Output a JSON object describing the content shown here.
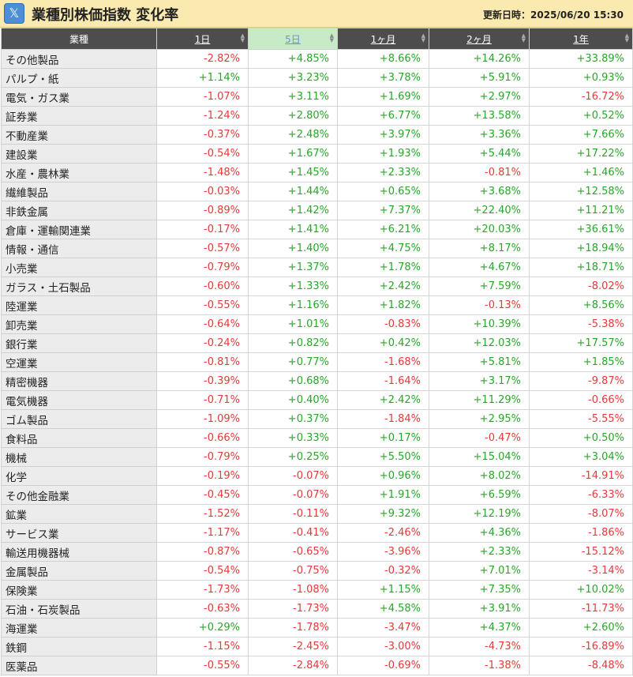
{
  "header": {
    "title": "業種別株価指数 変化率",
    "update_label": "更新日時：2025/06/20 15:30",
    "x_icon": "x-logo-icon"
  },
  "columns": [
    "業種",
    "1日",
    "5日",
    "1ヶ月",
    "2ヶ月",
    "1年"
  ],
  "current_sort_column": "5日",
  "colors": {
    "positive": "#2aa52a",
    "negative": "#e23b3b",
    "header_bg": "#4d4d4d",
    "active_header_bg": "#c8ebc7"
  },
  "rows": [
    [
      "その他製品",
      "-2.82%",
      "+4.85%",
      "+8.66%",
      "+14.26%",
      "+33.89%"
    ],
    [
      "パルプ・紙",
      "+1.14%",
      "+3.23%",
      "+3.78%",
      "+5.91%",
      "+0.93%"
    ],
    [
      "電気・ガス業",
      "-1.07%",
      "+3.11%",
      "+1.69%",
      "+2.97%",
      "-16.72%"
    ],
    [
      "証券業",
      "-1.24%",
      "+2.80%",
      "+6.77%",
      "+13.58%",
      "+0.52%"
    ],
    [
      "不動産業",
      "-0.37%",
      "+2.48%",
      "+3.97%",
      "+3.36%",
      "+7.66%"
    ],
    [
      "建設業",
      "-0.54%",
      "+1.67%",
      "+1.93%",
      "+5.44%",
      "+17.22%"
    ],
    [
      "水産・農林業",
      "-1.48%",
      "+1.45%",
      "+2.33%",
      "-0.81%",
      "+1.46%"
    ],
    [
      "繊維製品",
      "-0.03%",
      "+1.44%",
      "+0.65%",
      "+3.68%",
      "+12.58%"
    ],
    [
      "非鉄金属",
      "-0.89%",
      "+1.42%",
      "+7.37%",
      "+22.40%",
      "+11.21%"
    ],
    [
      "倉庫・運輸関連業",
      "-0.17%",
      "+1.41%",
      "+6.21%",
      "+20.03%",
      "+36.61%"
    ],
    [
      "情報・通信",
      "-0.57%",
      "+1.40%",
      "+4.75%",
      "+8.17%",
      "+18.94%"
    ],
    [
      "小売業",
      "-0.79%",
      "+1.37%",
      "+1.78%",
      "+4.67%",
      "+18.71%"
    ],
    [
      "ガラス・土石製品",
      "-0.60%",
      "+1.33%",
      "+2.42%",
      "+7.59%",
      "-8.02%"
    ],
    [
      "陸運業",
      "-0.55%",
      "+1.16%",
      "+1.82%",
      "-0.13%",
      "+8.56%"
    ],
    [
      "卸売業",
      "-0.64%",
      "+1.01%",
      "-0.83%",
      "+10.39%",
      "-5.38%"
    ],
    [
      "銀行業",
      "-0.24%",
      "+0.82%",
      "+0.42%",
      "+12.03%",
      "+17.57%"
    ],
    [
      "空運業",
      "-0.81%",
      "+0.77%",
      "-1.68%",
      "+5.81%",
      "+1.85%"
    ],
    [
      "精密機器",
      "-0.39%",
      "+0.68%",
      "-1.64%",
      "+3.17%",
      "-9.87%"
    ],
    [
      "電気機器",
      "-0.71%",
      "+0.40%",
      "+2.42%",
      "+11.29%",
      "-0.66%"
    ],
    [
      "ゴム製品",
      "-1.09%",
      "+0.37%",
      "-1.84%",
      "+2.95%",
      "-5.55%"
    ],
    [
      "食料品",
      "-0.66%",
      "+0.33%",
      "+0.17%",
      "-0.47%",
      "+0.50%"
    ],
    [
      "機械",
      "-0.79%",
      "+0.25%",
      "+5.50%",
      "+15.04%",
      "+3.04%"
    ],
    [
      "化学",
      "-0.19%",
      "-0.07%",
      "+0.96%",
      "+8.02%",
      "-14.91%"
    ],
    [
      "その他金融業",
      "-0.45%",
      "-0.07%",
      "+1.91%",
      "+6.59%",
      "-6.33%"
    ],
    [
      "鉱業",
      "-1.52%",
      "-0.11%",
      "+9.32%",
      "+12.19%",
      "-8.07%"
    ],
    [
      "サービス業",
      "-1.17%",
      "-0.41%",
      "-2.46%",
      "+4.36%",
      "-1.86%"
    ],
    [
      "輸送用機器械",
      "-0.87%",
      "-0.65%",
      "-3.96%",
      "+2.33%",
      "-15.12%"
    ],
    [
      "金属製品",
      "-0.54%",
      "-0.75%",
      "-0.32%",
      "+7.01%",
      "-3.14%"
    ],
    [
      "保険業",
      "-1.73%",
      "-1.08%",
      "+1.15%",
      "+7.35%",
      "+10.02%"
    ],
    [
      "石油・石炭製品",
      "-0.63%",
      "-1.73%",
      "+4.58%",
      "+3.91%",
      "-11.73%"
    ],
    [
      "海運業",
      "+0.29%",
      "-1.78%",
      "-3.47%",
      "+4.37%",
      "+2.60%"
    ],
    [
      "鉄鋼",
      "-1.15%",
      "-2.45%",
      "-3.00%",
      "-4.73%",
      "-16.89%"
    ],
    [
      "医薬品",
      "-0.55%",
      "-2.84%",
      "-0.69%",
      "-1.38%",
      "-8.48%"
    ]
  ]
}
